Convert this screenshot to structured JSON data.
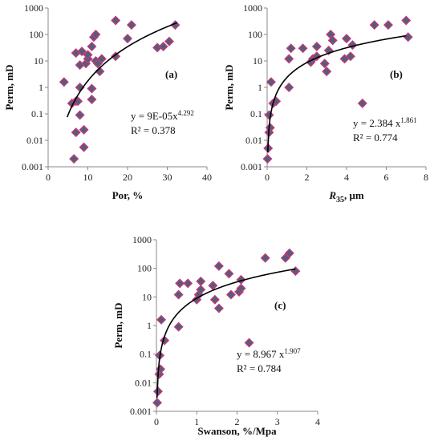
{
  "chart_data": [
    {
      "id": "a",
      "type": "scatter",
      "panel_label": "(a)",
      "xlabel": "Por, %",
      "xlabel_sub": "",
      "ylabel": "Perm, mD",
      "xlim": [
        0,
        40
      ],
      "ylim": [
        0.001,
        1000
      ],
      "yscale": "log",
      "x_ticks": [
        "0",
        "10",
        "20",
        "30",
        "40"
      ],
      "y_ticks": [
        "0.001",
        "0.01",
        "0.1",
        "1",
        "10",
        "100",
        "1000"
      ],
      "equation": "y = 9E-05x",
      "equation_exp": "4.292",
      "r2": "R² = 0.378",
      "trend": {
        "form": "power",
        "a": 9e-05,
        "b": 4.292,
        "x_range": [
          4.8,
          32.5
        ]
      },
      "points": [
        {
          "x": 4,
          "y": 1.6
        },
        {
          "x": 6,
          "y": 0.25
        },
        {
          "x": 6.5,
          "y": 0.002
        },
        {
          "x": 7,
          "y": 0.3
        },
        {
          "x": 7,
          "y": 20
        },
        {
          "x": 7,
          "y": 0.02
        },
        {
          "x": 7.5,
          "y": 0.3
        },
        {
          "x": 8,
          "y": 0.09
        },
        {
          "x": 8,
          "y": 1
        },
        {
          "x": 8,
          "y": 7
        },
        {
          "x": 8.5,
          "y": 23
        },
        {
          "x": 9,
          "y": 0.0055
        },
        {
          "x": 9,
          "y": 0.025
        },
        {
          "x": 9.5,
          "y": 8
        },
        {
          "x": 10,
          "y": 12
        },
        {
          "x": 10,
          "y": 17
        },
        {
          "x": 11,
          "y": 0.35
        },
        {
          "x": 11,
          "y": 0.9
        },
        {
          "x": 11,
          "y": 35
        },
        {
          "x": 11.5,
          "y": 80
        },
        {
          "x": 12,
          "y": 100
        },
        {
          "x": 12,
          "y": 10
        },
        {
          "x": 12.5,
          "y": 8
        },
        {
          "x": 13,
          "y": 4
        },
        {
          "x": 13.5,
          "y": 12
        },
        {
          "x": 17,
          "y": 340
        },
        {
          "x": 17,
          "y": 15
        },
        {
          "x": 20,
          "y": 70
        },
        {
          "x": 21,
          "y": 230
        },
        {
          "x": 27.5,
          "y": 32
        },
        {
          "x": 29,
          "y": 35
        },
        {
          "x": 30.5,
          "y": 55
        },
        {
          "x": 32,
          "y": 230
        }
      ]
    },
    {
      "id": "b",
      "type": "scatter",
      "panel_label": "(b)",
      "xlabel": "R",
      "xlabel_sub": "35",
      "xlabel_suffix": ", μm",
      "ylabel": "Perm, mD",
      "xlim": [
        0,
        8
      ],
      "ylim": [
        0.001,
        1000
      ],
      "yscale": "log",
      "x_ticks": [
        "0",
        "2",
        "4",
        "6",
        "8"
      ],
      "y_ticks": [
        "0.001",
        "0.01",
        "0.1",
        "1",
        "10",
        "100",
        "1000"
      ],
      "equation": "y = 2.384 x",
      "equation_exp": "1.861",
      "r2": "R² = 0.774",
      "trend": {
        "form": "power",
        "a": 2.384,
        "b": 1.861,
        "x_range": [
          0.03,
          7.0
        ]
      },
      "points": [
        {
          "x": 0.02,
          "y": 0.002
        },
        {
          "x": 0.05,
          "y": 0.005
        },
        {
          "x": 0.1,
          "y": 0.02
        },
        {
          "x": 0.1,
          "y": 0.09
        },
        {
          "x": 0.15,
          "y": 0.03
        },
        {
          "x": 0.2,
          "y": 1.6
        },
        {
          "x": 0.3,
          "y": 0.25
        },
        {
          "x": 0.45,
          "y": 0.3
        },
        {
          "x": 1.1,
          "y": 1
        },
        {
          "x": 1.1,
          "y": 12
        },
        {
          "x": 1.2,
          "y": 30
        },
        {
          "x": 1.8,
          "y": 30
        },
        {
          "x": 2.2,
          "y": 9
        },
        {
          "x": 2.3,
          "y": 12
        },
        {
          "x": 2.5,
          "y": 35
        },
        {
          "x": 2.5,
          "y": 15
        },
        {
          "x": 2.9,
          "y": 8
        },
        {
          "x": 3,
          "y": 4
        },
        {
          "x": 3.1,
          "y": 25
        },
        {
          "x": 3.2,
          "y": 100
        },
        {
          "x": 3.3,
          "y": 60
        },
        {
          "x": 3.9,
          "y": 12
        },
        {
          "x": 4,
          "y": 70
        },
        {
          "x": 4.2,
          "y": 15
        },
        {
          "x": 4.3,
          "y": 40
        },
        {
          "x": 4.8,
          "y": 0.25
        },
        {
          "x": 5.4,
          "y": 230
        },
        {
          "x": 6.1,
          "y": 230
        },
        {
          "x": 7,
          "y": 340
        },
        {
          "x": 7.1,
          "y": 80
        }
      ]
    },
    {
      "id": "c",
      "type": "scatter",
      "panel_label": "(c)",
      "xlabel": "Swanson, %/Mpa",
      "xlabel_sub": "",
      "ylabel": "Perm, mD",
      "xlim": [
        0,
        4
      ],
      "ylim": [
        0.001,
        1000
      ],
      "yscale": "log",
      "x_ticks": [
        "0",
        "1",
        "2",
        "3",
        "4"
      ],
      "y_ticks": [
        "0.001",
        "0.01",
        "0.1",
        "1",
        "10",
        "100",
        "1000"
      ],
      "equation": "y = 8.967 x",
      "equation_exp": "1.907",
      "r2": "R² = 0.784",
      "trend": {
        "form": "power",
        "a": 8.967,
        "b": 1.907,
        "x_range": [
          0.015,
          3.45
        ]
      },
      "points": [
        {
          "x": 0.02,
          "y": 0.002
        },
        {
          "x": 0.04,
          "y": 0.005
        },
        {
          "x": 0.07,
          "y": 0.02
        },
        {
          "x": 0.08,
          "y": 0.09
        },
        {
          "x": 0.1,
          "y": 0.03
        },
        {
          "x": 0.12,
          "y": 1.6
        },
        {
          "x": 0.2,
          "y": 0.3
        },
        {
          "x": 0.55,
          "y": 0.9
        },
        {
          "x": 0.55,
          "y": 12
        },
        {
          "x": 0.58,
          "y": 30
        },
        {
          "x": 0.78,
          "y": 30
        },
        {
          "x": 1.0,
          "y": 8
        },
        {
          "x": 1.05,
          "y": 12
        },
        {
          "x": 1.1,
          "y": 35
        },
        {
          "x": 1.1,
          "y": 18
        },
        {
          "x": 1.4,
          "y": 25
        },
        {
          "x": 1.45,
          "y": 8
        },
        {
          "x": 1.55,
          "y": 4
        },
        {
          "x": 1.55,
          "y": 120
        },
        {
          "x": 1.8,
          "y": 65
        },
        {
          "x": 1.85,
          "y": 12
        },
        {
          "x": 2.05,
          "y": 15
        },
        {
          "x": 2.1,
          "y": 20
        },
        {
          "x": 2.1,
          "y": 40
        },
        {
          "x": 2.3,
          "y": 0.25
        },
        {
          "x": 2.7,
          "y": 230
        },
        {
          "x": 3.2,
          "y": 230
        },
        {
          "x": 3.3,
          "y": 340
        },
        {
          "x": 3.45,
          "y": 80
        }
      ]
    }
  ]
}
